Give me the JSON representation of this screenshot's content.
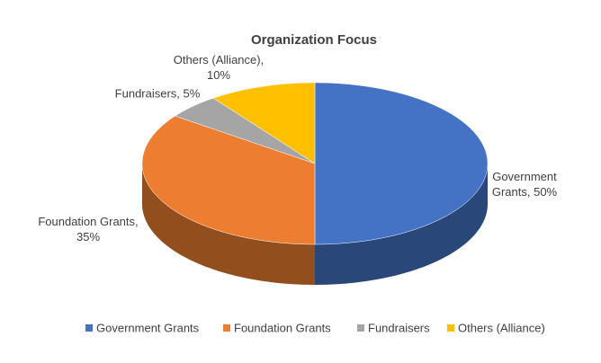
{
  "chart_data": {
    "type": "pie3d",
    "title": "Organization Focus",
    "categories": [
      "Government Grants",
      "Foundation Grants",
      "Fundraisers",
      "Others (Alliance)"
    ],
    "values": [
      50,
      35,
      5,
      10
    ],
    "value_labels": [
      "Government Grants, 50%",
      "Foundation Grants, 35%",
      "Fundraisers, 5%",
      "Others (Alliance), 10%"
    ],
    "colors": [
      "#4472c4",
      "#ed7d31",
      "#a5a5a5",
      "#ffc000"
    ],
    "legend": "bottom"
  }
}
